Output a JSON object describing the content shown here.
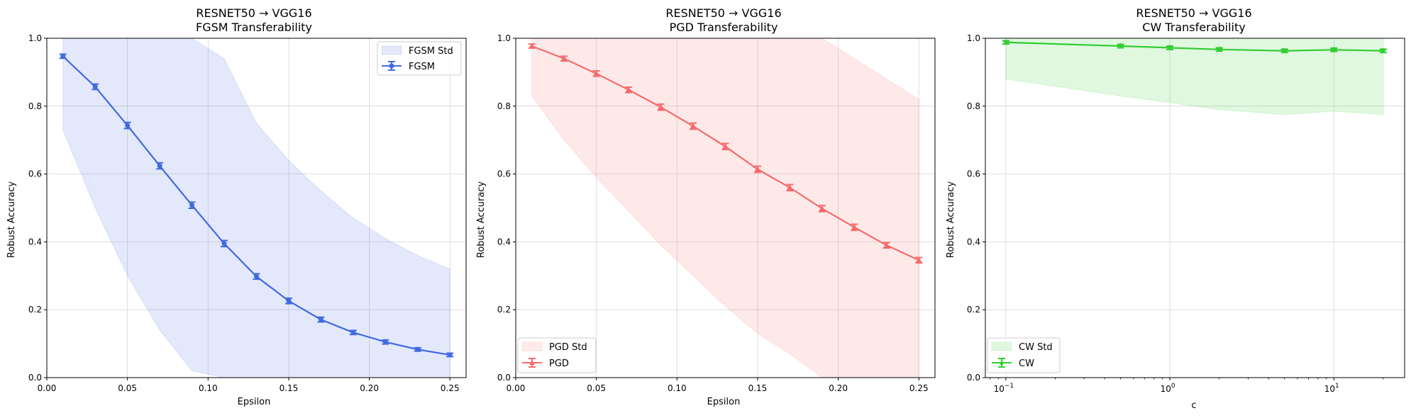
{
  "chart_data": [
    {
      "type": "line",
      "title_line1": "RESNET50 → VGG16",
      "title_line2": "FGSM Transferability",
      "xlabel": "Epsilon",
      "ylabel": "Robust Accuracy",
      "xscale": "linear",
      "xlim": [
        0.0,
        0.26
      ],
      "ylim": [
        0.0,
        1.0
      ],
      "xticks": [
        0.0,
        0.05,
        0.1,
        0.15,
        0.2,
        0.25
      ],
      "xtick_labels": [
        "0.00",
        "0.05",
        "0.10",
        "0.15",
        "0.20",
        "0.25"
      ],
      "yticks": [
        0.0,
        0.2,
        0.4,
        0.6,
        0.8,
        1.0
      ],
      "ytick_labels": [
        "0.0",
        "0.2",
        "0.4",
        "0.6",
        "0.8",
        "1.0"
      ],
      "grid": true,
      "legend_position": "top-right",
      "color": "#4169e1",
      "band_color": "#4169e1",
      "marker": "circle",
      "legend": [
        "FGSM Std",
        "FGSM"
      ],
      "series": [
        {
          "name": "FGSM",
          "x": [
            0.01,
            0.03,
            0.05,
            0.07,
            0.09,
            0.11,
            0.13,
            0.15,
            0.17,
            0.19,
            0.21,
            0.23,
            0.25
          ],
          "values": [
            0.947,
            0.857,
            0.743,
            0.624,
            0.508,
            0.395,
            0.298,
            0.226,
            0.171,
            0.133,
            0.105,
            0.083,
            0.067
          ],
          "err": [
            0.006,
            0.008,
            0.009,
            0.009,
            0.009,
            0.009,
            0.008,
            0.008,
            0.007,
            0.006,
            0.006,
            0.005,
            0.005
          ],
          "std_upper": [
            1.16,
            1.08,
            1.19,
            1.11,
            1.08,
            0.94,
            0.75,
            0.64,
            0.55,
            0.47,
            0.41,
            0.36,
            0.32
          ],
          "std_lower": [
            0.73,
            0.5,
            0.3,
            0.14,
            0.02,
            -0.09,
            -0.15,
            -0.18,
            -0.2,
            -0.21,
            -0.21,
            -0.21,
            -0.2
          ]
        }
      ]
    },
    {
      "type": "line",
      "title_line1": "RESNET50 → VGG16",
      "title_line2": "PGD Transferability",
      "xlabel": "Epsilon",
      "ylabel": "Robust Accuracy",
      "xscale": "linear",
      "xlim": [
        0.0,
        0.26
      ],
      "ylim": [
        0.0,
        1.0
      ],
      "xticks": [
        0.0,
        0.05,
        0.1,
        0.15,
        0.2,
        0.25
      ],
      "xtick_labels": [
        "0.00",
        "0.05",
        "0.10",
        "0.15",
        "0.20",
        "0.25"
      ],
      "yticks": [
        0.0,
        0.2,
        0.4,
        0.6,
        0.8,
        1.0
      ],
      "ytick_labels": [
        "0.0",
        "0.2",
        "0.4",
        "0.6",
        "0.8",
        "1.0"
      ],
      "grid": true,
      "legend_position": "bottom-left",
      "color": "#f56b6b",
      "band_color": "#f56b6b",
      "marker": "triangle-up",
      "legend": [
        "PGD Std",
        "PGD"
      ],
      "series": [
        {
          "name": "PGD",
          "x": [
            0.01,
            0.03,
            0.05,
            0.07,
            0.09,
            0.11,
            0.13,
            0.15,
            0.17,
            0.19,
            0.21,
            0.23,
            0.25
          ],
          "values": [
            0.977,
            0.94,
            0.896,
            0.848,
            0.797,
            0.741,
            0.681,
            0.614,
            0.56,
            0.498,
            0.443,
            0.39,
            0.346
          ],
          "err": [
            0.006,
            0.007,
            0.008,
            0.008,
            0.009,
            0.009,
            0.009,
            0.009,
            0.009,
            0.009,
            0.009,
            0.008,
            0.008
          ],
          "std_upper": [
            1.13,
            1.18,
            1.2,
            1.21,
            1.2,
            1.19,
            1.16,
            1.12,
            1.06,
            1.0,
            0.94,
            0.88,
            0.82
          ],
          "std_lower": [
            0.83,
            0.7,
            0.59,
            0.49,
            0.39,
            0.3,
            0.21,
            0.13,
            0.07,
            0.0,
            -0.05,
            -0.1,
            -0.13
          ]
        }
      ]
    },
    {
      "type": "line",
      "title_line1": "RESNET50 → VGG16",
      "title_line2": "CW Transferability",
      "xlabel": "c",
      "ylabel": "Robust Accuracy",
      "xscale": "log",
      "xlim": [
        0.075,
        27
      ],
      "ylim": [
        0.0,
        1.0
      ],
      "xticks": [
        0.1,
        1,
        10
      ],
      "xtick_base": "10",
      "xtick_exponents": [
        "−1",
        "0",
        "1"
      ],
      "minor_xticks": [
        0.08,
        0.09,
        0.2,
        0.3,
        0.4,
        0.5,
        0.6,
        0.7,
        0.8,
        0.9,
        2,
        3,
        4,
        5,
        6,
        7,
        8,
        9,
        20
      ],
      "yticks": [
        0.0,
        0.2,
        0.4,
        0.6,
        0.8,
        1.0
      ],
      "ytick_labels": [
        "0.0",
        "0.2",
        "0.4",
        "0.6",
        "0.8",
        "1.0"
      ],
      "grid": true,
      "legend_position": "bottom-left",
      "color": "#32cd32",
      "band_color": "#32cd32",
      "marker": "star",
      "legend": [
        "CW Std",
        "CW"
      ],
      "series": [
        {
          "name": "CW",
          "x": [
            0.1,
            0.5,
            1,
            2,
            5,
            10,
            20
          ],
          "values": [
            0.988,
            0.977,
            0.972,
            0.967,
            0.963,
            0.966,
            0.963
          ],
          "err": [
            0.005,
            0.005,
            0.005,
            0.005,
            0.005,
            0.005,
            0.005
          ],
          "std_upper": [
            1.1,
            1.12,
            1.13,
            1.14,
            1.15,
            1.15,
            1.15
          ],
          "std_lower": [
            0.88,
            0.83,
            0.81,
            0.79,
            0.775,
            0.785,
            0.775
          ]
        }
      ]
    }
  ]
}
